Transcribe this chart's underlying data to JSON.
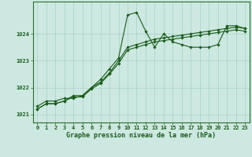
{
  "series": [
    {
      "x": [
        0,
        1,
        2,
        3,
        4,
        5,
        6,
        7,
        8,
        9,
        10,
        11,
        12,
        13,
        14,
        15,
        16,
        17,
        18,
        19,
        20,
        21,
        22,
        23
      ],
      "y": [
        1021.3,
        1021.5,
        1021.5,
        1021.6,
        1021.6,
        1021.7,
        1022.0,
        1022.3,
        1022.7,
        1023.1,
        1024.7,
        1024.8,
        1024.1,
        1023.5,
        1024.0,
        1023.7,
        1023.6,
        1023.5,
        1023.5,
        1023.5,
        1023.6,
        1024.3,
        1024.3,
        1024.2
      ]
    },
    {
      "x": [
        0,
        1,
        2,
        3,
        4,
        5,
        6,
        7,
        8,
        9,
        10,
        11,
        12,
        13,
        14,
        15,
        16,
        17,
        18,
        19,
        20,
        21,
        22,
        23
      ],
      "y": [
        1021.2,
        1021.4,
        1021.4,
        1021.5,
        1021.7,
        1021.7,
        1022.0,
        1022.2,
        1022.55,
        1023.0,
        1023.5,
        1023.6,
        1023.7,
        1023.8,
        1023.85,
        1023.9,
        1023.95,
        1024.0,
        1024.05,
        1024.1,
        1024.15,
        1024.2,
        1024.25,
        1024.2
      ]
    },
    {
      "x": [
        0,
        1,
        2,
        3,
        4,
        5,
        6,
        7,
        8,
        9,
        10,
        11,
        12,
        13,
        14,
        15,
        16,
        17,
        18,
        19,
        20,
        21,
        22,
        23
      ],
      "y": [
        1021.2,
        1021.4,
        1021.4,
        1021.5,
        1021.65,
        1021.65,
        1021.95,
        1022.15,
        1022.5,
        1022.9,
        1023.4,
        1023.5,
        1023.6,
        1023.7,
        1023.75,
        1023.8,
        1023.85,
        1023.9,
        1023.95,
        1024.0,
        1024.05,
        1024.1,
        1024.15,
        1024.1
      ]
    }
  ],
  "line_color": "#1a5c1a",
  "marker": "D",
  "marker_size": 1.8,
  "line_width": 0.8,
  "bg_color": "#cce8e0",
  "grid_color": "#a8d0c8",
  "axis_label_color": "#1a5c1a",
  "tick_label_color": "#1a5c1a",
  "xlabel": "Graphe pression niveau de la mer (hPa)",
  "xlabel_fontsize": 6.0,
  "ylabel_ticks": [
    1021,
    1022,
    1023,
    1024
  ],
  "ylim": [
    1020.7,
    1025.2
  ],
  "xlim": [
    -0.5,
    23.5
  ],
  "xticks": [
    0,
    1,
    2,
    3,
    4,
    5,
    6,
    7,
    8,
    9,
    10,
    11,
    12,
    13,
    14,
    15,
    16,
    17,
    18,
    19,
    20,
    21,
    22,
    23
  ],
  "tick_fontsize": 5.0,
  "spine_color": "#2d6e2d"
}
